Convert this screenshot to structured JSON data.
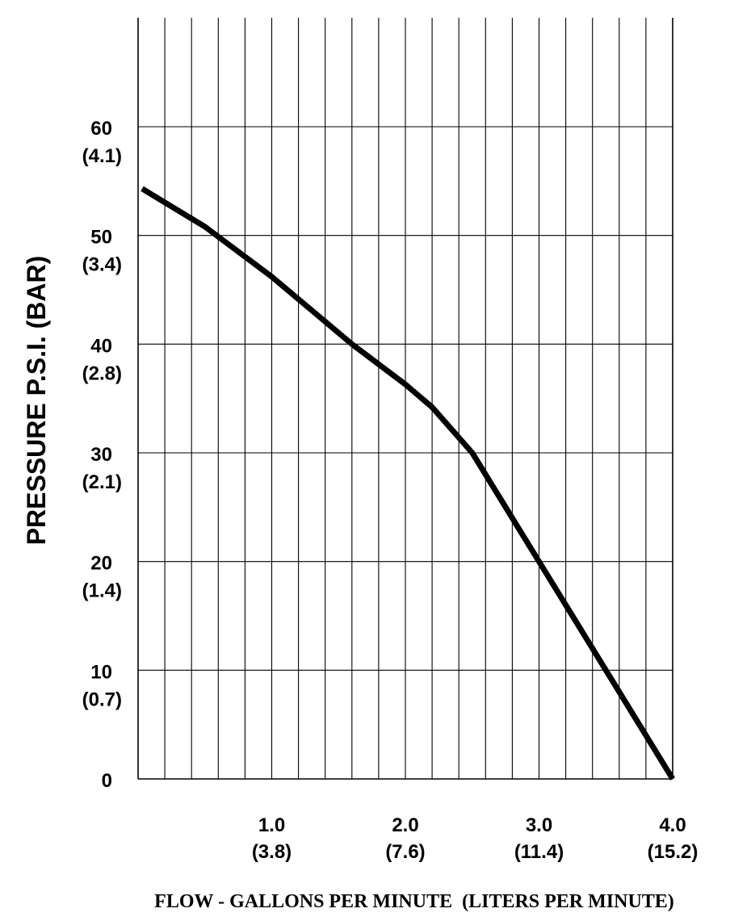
{
  "chart_data": {
    "type": "line",
    "xlabel": "FLOW - GALLONS PER MINUTE  (LITERS PER MINUTE)",
    "ylabel": "PRESSURE  P.S.I.   (BAR)",
    "xlim": [
      0,
      4.0
    ],
    "ylim": [
      0,
      60
    ],
    "grid": true,
    "x_ticks": [
      {
        "value": 1.0,
        "label": "1.0",
        "sublabel": "(3.8)"
      },
      {
        "value": 2.0,
        "label": "2.0",
        "sublabel": "(7.6)"
      },
      {
        "value": 3.0,
        "label": "3.0",
        "sublabel": "(11.4)"
      },
      {
        "value": 4.0,
        "label": "4.0",
        "sublabel": "(15.2)"
      }
    ],
    "y_ticks": [
      {
        "value": 0,
        "label": "0",
        "sublabel": ""
      },
      {
        "value": 10,
        "label": "10",
        "sublabel": "(0.7)"
      },
      {
        "value": 20,
        "label": "20",
        "sublabel": "(1.4)"
      },
      {
        "value": 30,
        "label": "30",
        "sublabel": "(2.1)"
      },
      {
        "value": 40,
        "label": "40",
        "sublabel": "(2.8)"
      },
      {
        "value": 50,
        "label": "50",
        "sublabel": "(3.4)"
      },
      {
        "value": 60,
        "label": "60",
        "sublabel": "(4.1)"
      }
    ],
    "series": [
      {
        "x": [
          0.03,
          0.5,
          1.0,
          1.6,
          2.0,
          2.2,
          2.5,
          3.0,
          3.5,
          4.0
        ],
        "y": [
          54.3,
          50.8,
          46.2,
          40.0,
          36.3,
          34.2,
          30.0,
          20.0,
          10.0,
          0.0
        ],
        "color": "#000000"
      }
    ]
  }
}
